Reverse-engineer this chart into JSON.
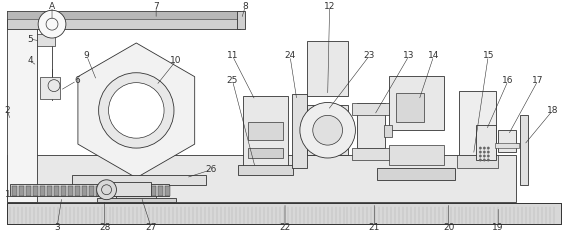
{
  "bg_color": "#ffffff",
  "line_color": "#333333",
  "fig_w": 5.74,
  "fig_h": 2.39,
  "dpi": 100
}
